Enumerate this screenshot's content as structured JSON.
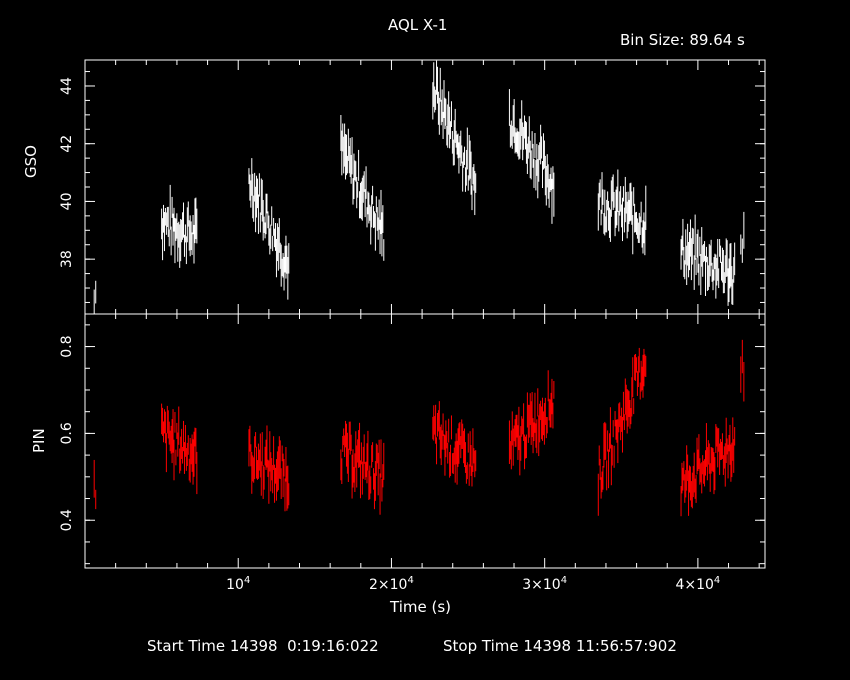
{
  "title": "AQL X-1",
  "bin_size": "Bin Size: 89.64 s",
  "footer": {
    "start": "Start Time 14398  0:19:16:022",
    "stop": "Stop Time 14398 11:56:57:902"
  },
  "chart_data": [
    {
      "type": "scatter",
      "name": "GSO",
      "ylabel": "GSO",
      "xlabel": "Time (s)",
      "xlim": [
        0,
        44380
      ],
      "ylim": [
        36.1,
        44.9
      ],
      "yticks": [
        "38",
        "40",
        "42",
        "44"
      ],
      "color": "#ffffff",
      "segments": [
        {
          "x": [
            600,
            700
          ],
          "y": [
            36.4,
            37.4
          ]
        },
        {
          "x": [
            5000,
            7300
          ],
          "y": [
            39.3,
            38.8
          ]
        },
        {
          "x": [
            10700,
            13300
          ],
          "y": [
            40.8,
            37.8
          ]
        },
        {
          "x": [
            16700,
            19500
          ],
          "y": [
            41.8,
            38.9
          ]
        },
        {
          "x": [
            22700,
            25500
          ],
          "y": [
            44.0,
            40.5
          ]
        },
        {
          "x": [
            27700,
            30600
          ],
          "y": [
            43.0,
            40.6
          ]
        },
        {
          "x": [
            33500,
            36600
          ],
          "y": [
            40.0,
            39.3
          ]
        },
        {
          "x": [
            38900,
            42400
          ],
          "y": [
            38.3,
            37.5
          ]
        },
        {
          "x": [
            42800,
            43000
          ],
          "y": [
            38.8,
            38.8
          ]
        }
      ]
    },
    {
      "type": "scatter",
      "name": "PIN",
      "ylabel": "PIN",
      "xlabel": "Time (s)",
      "xlim": [
        0,
        44380
      ],
      "ylim": [
        0.29,
        0.875
      ],
      "yticks": [
        "0.4",
        "0.6",
        "0.8"
      ],
      "color": "#ff0000",
      "segments": [
        {
          "x": [
            600,
            700
          ],
          "y": [
            0.47,
            0.43
          ]
        },
        {
          "x": [
            5000,
            7300
          ],
          "y": [
            0.6,
            0.55
          ]
        },
        {
          "x": [
            10700,
            13300
          ],
          "y": [
            0.55,
            0.5
          ]
        },
        {
          "x": [
            16700,
            19500
          ],
          "y": [
            0.56,
            0.5
          ]
        },
        {
          "x": [
            22700,
            25500
          ],
          "y": [
            0.6,
            0.53
          ]
        },
        {
          "x": [
            27700,
            30600
          ],
          "y": [
            0.56,
            0.68
          ]
        },
        {
          "x": [
            33500,
            36600
          ],
          "y": [
            0.5,
            0.77
          ]
        },
        {
          "x": [
            38900,
            42400
          ],
          "y": [
            0.48,
            0.58
          ]
        },
        {
          "x": [
            42800,
            43000
          ],
          "y": [
            0.77,
            0.72
          ]
        }
      ]
    }
  ],
  "x_axis": {
    "ticks": [
      {
        "value": 10000,
        "mantissa": "",
        "exp": "4"
      },
      {
        "value": 20000,
        "mantissa": "2×",
        "exp": "4"
      },
      {
        "value": 30000,
        "mantissa": "3×",
        "exp": "4"
      },
      {
        "value": 40000,
        "mantissa": "4×",
        "exp": "4"
      }
    ]
  }
}
